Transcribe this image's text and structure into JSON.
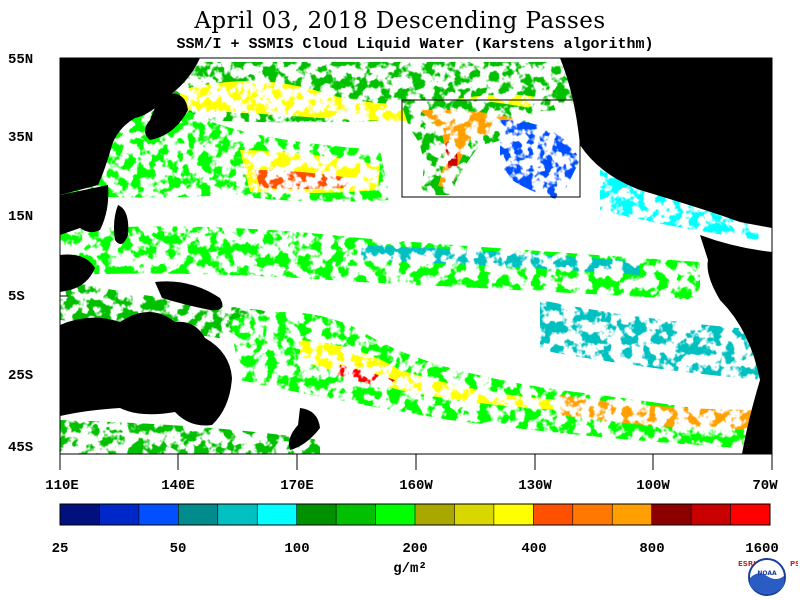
{
  "header": {
    "title": "April 03, 2018  Descending Passes",
    "subtitle": "SSM/I + SSMIS Cloud Liquid Water (Karstens algorithm)"
  },
  "map": {
    "lat_labels": [
      "55N",
      "35N",
      "15N",
      "5S",
      "25S",
      "45S"
    ],
    "lon_labels": [
      "110E",
      "140E",
      "170E",
      "160W",
      "130W",
      "100W",
      "70W"
    ],
    "colors": {
      "land": "#000000",
      "no_data": "#ffffff",
      "box": "#000000"
    }
  },
  "colorbar": {
    "colors": [
      "#00107c",
      "#0028c8",
      "#0050ff",
      "#008c8c",
      "#00c0c0",
      "#00ffff",
      "#009000",
      "#00c000",
      "#00ff00",
      "#a8a800",
      "#d8d800",
      "#ffff00",
      "#ff5000",
      "#ff7800",
      "#ffa000",
      "#8c0000",
      "#c80000",
      "#ff0000"
    ],
    "labels": [
      "25",
      "50",
      "100",
      "200",
      "400",
      "800",
      "1600"
    ],
    "units": "g/m²"
  },
  "logo": {
    "left_text": "ESRL",
    "right_text": "PSD",
    "center_text": "NOAA",
    "colors": {
      "ring": "#1a3f99",
      "water": "#2a5cc4",
      "letters": "#d22020"
    }
  }
}
